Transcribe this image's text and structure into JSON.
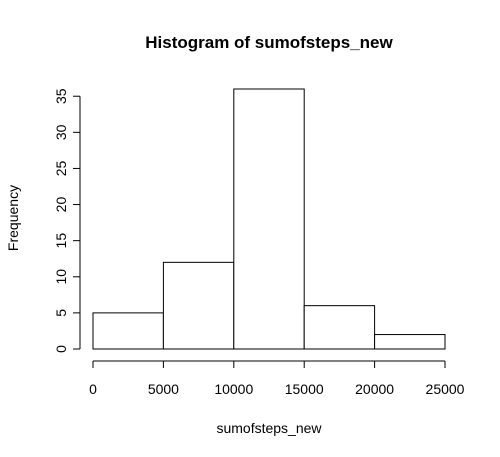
{
  "chart_data": {
    "type": "bar",
    "subtype": "histogram",
    "title": "Histogram of sumofsteps_new",
    "xlabel": "sumofsteps_new",
    "ylabel": "Frequency",
    "bins": [
      {
        "from": 0,
        "to": 5000,
        "count": 5
      },
      {
        "from": 5000,
        "to": 10000,
        "count": 12
      },
      {
        "from": 10000,
        "to": 15000,
        "count": 36
      },
      {
        "from": 15000,
        "to": 20000,
        "count": 6
      },
      {
        "from": 20000,
        "to": 25000,
        "count": 2
      }
    ],
    "xlim": [
      0,
      25000
    ],
    "ylim": [
      0,
      36
    ],
    "xticks": [
      0,
      5000,
      10000,
      15000,
      20000,
      25000
    ],
    "yticks": [
      0,
      5,
      10,
      15,
      20,
      25,
      30,
      35
    ],
    "grid": false,
    "colors": {
      "bar_fill": "#ffffff",
      "bar_stroke": "#000000",
      "axis": "#000000"
    }
  }
}
